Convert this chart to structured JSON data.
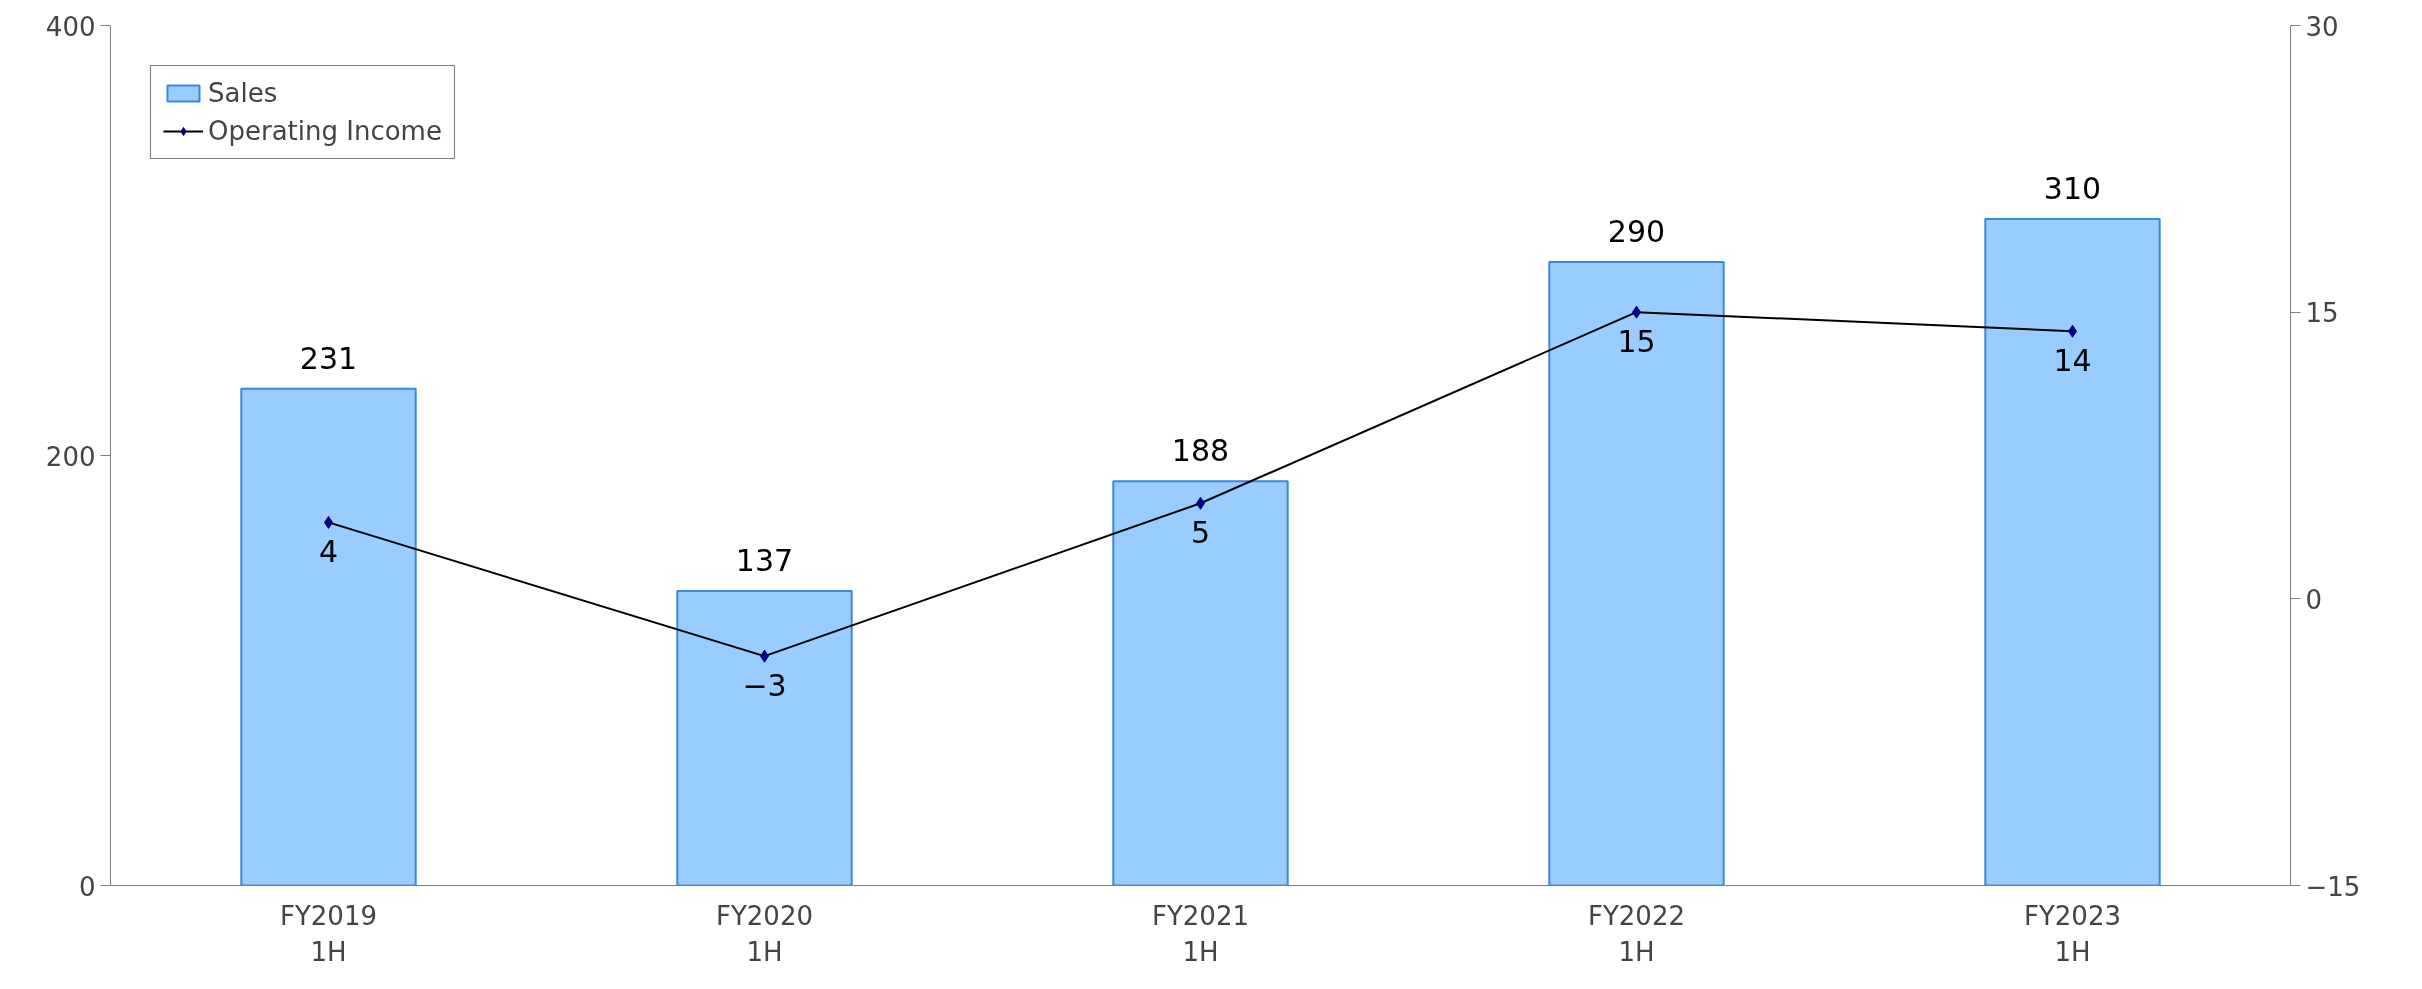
{
  "chart_data": {
    "type": "bar",
    "categories": [
      "FY2019\n1H",
      "FY2020\n1H",
      "FY2021\n1H",
      "FY2022\n1H",
      "FY2023\n1H"
    ],
    "series": [
      {
        "name": "Sales",
        "color": "#99ccff",
        "values": [
          231,
          137,
          188,
          290,
          310
        ]
      },
      {
        "name": "Operating Income",
        "type": "line",
        "axis": "y2",
        "color": "#000080",
        "marker": "diamond",
        "values": [
          4,
          -3,
          5,
          15,
          14
        ]
      }
    ],
    "ylim": [
      0,
      400
    ],
    "yticks": [
      0,
      200,
      400
    ],
    "y2lim": [
      -15,
      30
    ],
    "y2ticks": [
      -15,
      0,
      15,
      30
    ],
    "data_labels": true,
    "legend": "top left",
    "grid": false
  }
}
